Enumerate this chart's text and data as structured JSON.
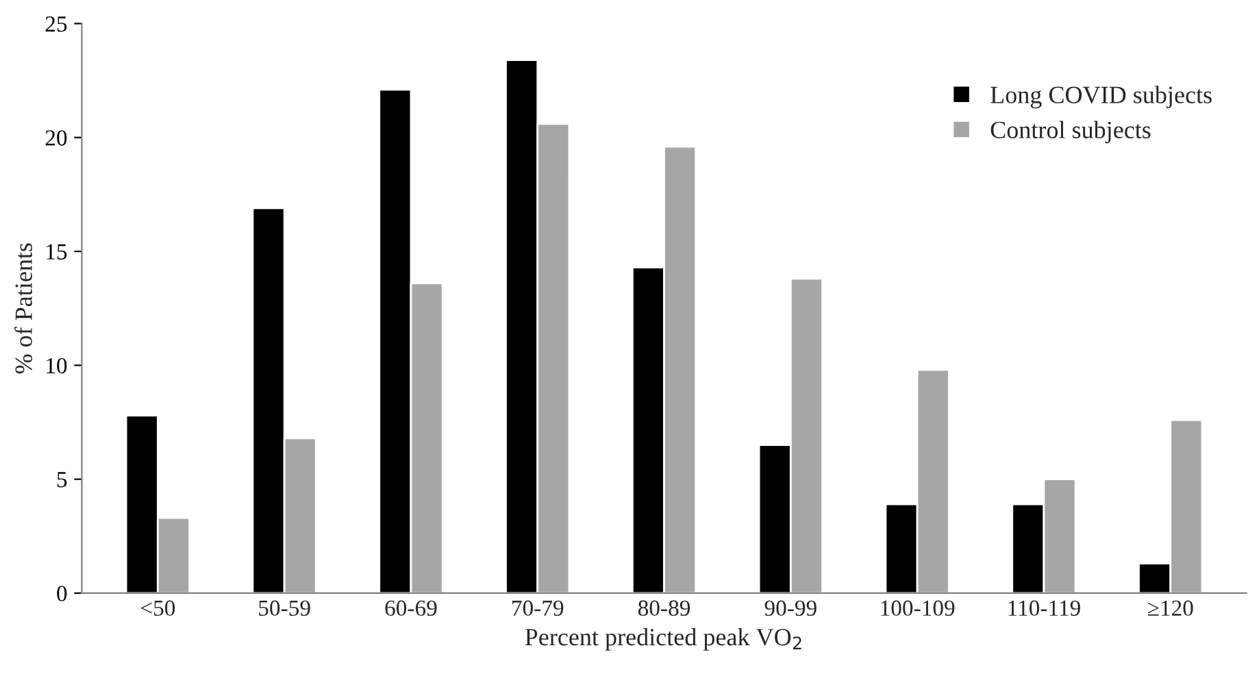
{
  "chart_data": {
    "type": "bar",
    "xlabel": "Percent predicted peak VO$_{2}$",
    "ylabel": "% of Patients",
    "categories": [
      "<50",
      "50-59",
      "60-69",
      "70-79",
      "80-89",
      "90-99",
      "100-109",
      "110-119",
      "≥120"
    ],
    "series": [
      {
        "name": "Long COVID subjects",
        "color": "#000000",
        "values": [
          7.8,
          16.9,
          22.1,
          23.4,
          14.3,
          6.5,
          3.9,
          3.9,
          1.3
        ]
      },
      {
        "name": "Control subjects",
        "color": "#a6a6a6",
        "values": [
          3.3,
          6.8,
          13.6,
          20.6,
          19.6,
          13.8,
          9.8,
          5.0,
          7.6
        ]
      }
    ],
    "ylim": [
      0,
      25
    ],
    "yticks": [
      0,
      5,
      10,
      15,
      20,
      25
    ],
    "grid": false,
    "legend": "top right"
  }
}
